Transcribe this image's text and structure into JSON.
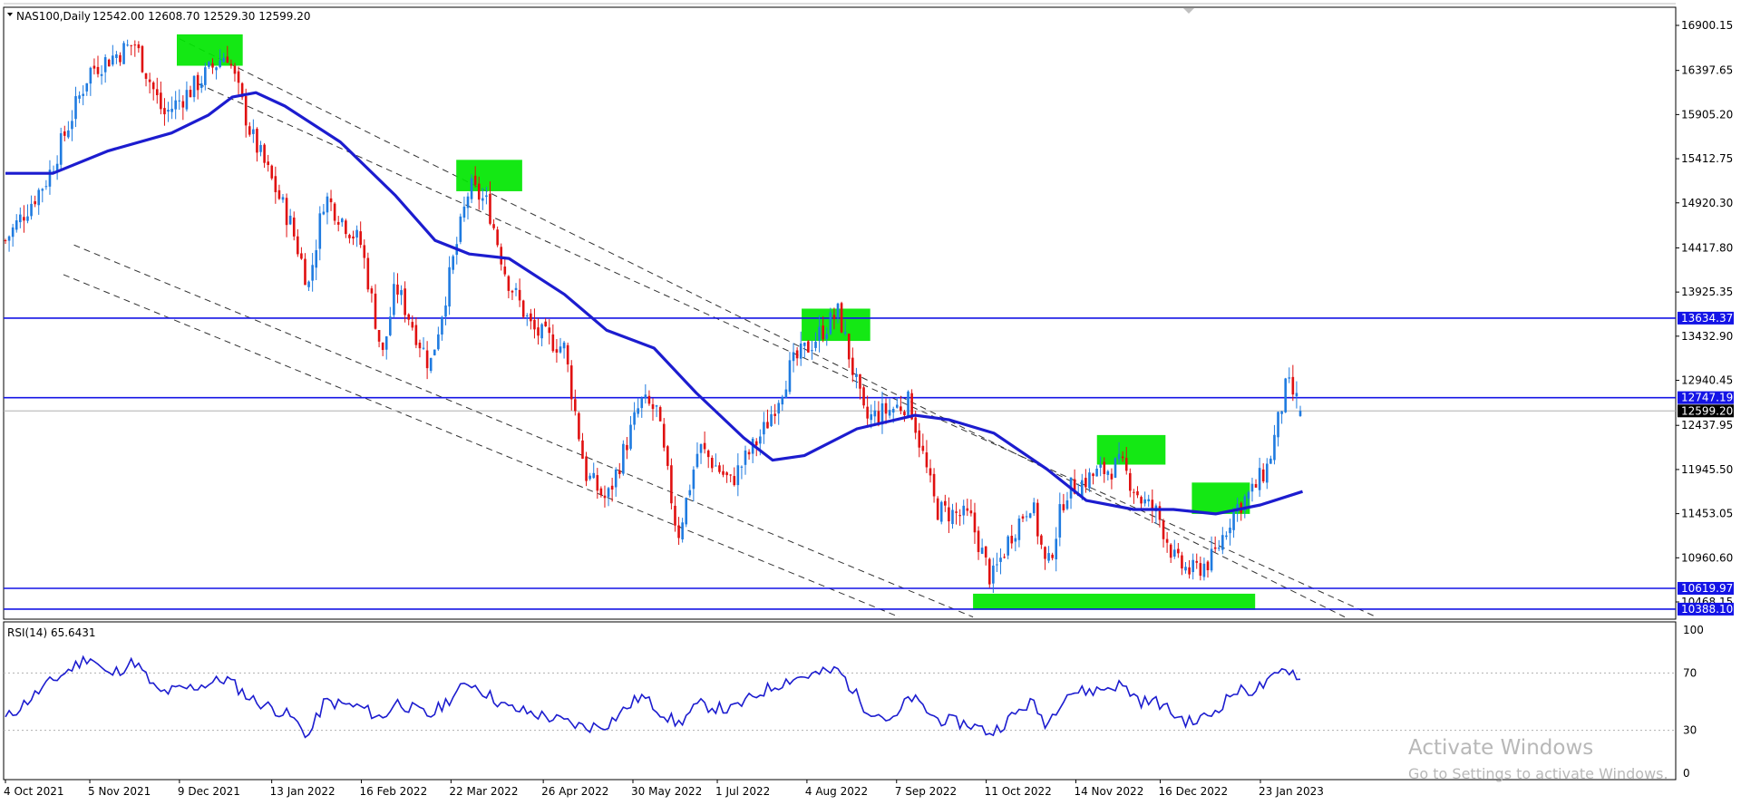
{
  "header": {
    "symbol": "NAS100,Daily",
    "ohlc": "12542.00 12608.70 12529.30 12599.20"
  },
  "colors": {
    "bull_candle": "#1f7be0",
    "bear_candle": "#e01010",
    "moving_average": "#1c1ccf",
    "level_line": "#1414e6",
    "highlight_box": "#00e600",
    "rsi_line": "#1c1ccf",
    "channel_line": "#333333"
  },
  "chart_data": [
    {
      "type": "candlestick",
      "title": "NAS100,Daily",
      "ylim": [
        10260,
        17000
      ],
      "y_tick_labels": [
        "16900.15",
        "16397.65",
        "15905.20",
        "15412.75",
        "14920.30",
        "14417.80",
        "13925.35",
        "13432.90",
        "12940.45",
        "12437.95",
        "11945.50",
        "11453.05",
        "10960.60",
        "10468.15"
      ],
      "x_tick_labels": [
        "4 Oct 2021",
        "5 Nov 2021",
        "9 Dec 2021",
        "13 Jan 2022",
        "16 Feb 2022",
        "22 Mar 2022",
        "26 Apr 2022",
        "30 May 2022",
        "1 Jul 2022",
        "4 Aug 2022",
        "7 Sep 2022",
        "11 Oct 2022",
        "14 Nov 2022",
        "16 Dec 2022",
        "23 Jan 2023"
      ],
      "last_ohlc": {
        "open": 12542.0,
        "high": 12608.7,
        "low": 12529.3,
        "close": 12599.2
      },
      "horizontal_levels": [
        {
          "value": 13634.37,
          "label": "13634.37"
        },
        {
          "value": 12747.19,
          "label": "12747.19"
        },
        {
          "value": 10619.97,
          "label": "10619.97"
        },
        {
          "value": 10388.1,
          "label": "10388.10"
        }
      ],
      "current_price": {
        "value": 12599.2,
        "label": "12599.20"
      },
      "close_path": [
        {
          "date": "2021-10-04",
          "close": 14500
        },
        {
          "date": "2021-10-20",
          "close": 15200
        },
        {
          "date": "2021-11-05",
          "close": 16400
        },
        {
          "date": "2021-11-22",
          "close": 16700
        },
        {
          "date": "2021-12-03",
          "close": 15900
        },
        {
          "date": "2021-12-14",
          "close": 16200
        },
        {
          "date": "2021-12-27",
          "close": 16600
        },
        {
          "date": "2022-01-05",
          "close": 15700
        },
        {
          "date": "2022-01-20",
          "close": 14700
        },
        {
          "date": "2022-01-27",
          "close": 14000
        },
        {
          "date": "2022-02-02",
          "close": 15000
        },
        {
          "date": "2022-02-16",
          "close": 14450
        },
        {
          "date": "2022-02-24",
          "close": 13200
        },
        {
          "date": "2022-03-01",
          "close": 14000
        },
        {
          "date": "2022-03-14",
          "close": 13100
        },
        {
          "date": "2022-03-29",
          "close": 15100
        },
        {
          "date": "2022-04-05",
          "close": 14900
        },
        {
          "date": "2022-04-12",
          "close": 14100
        },
        {
          "date": "2022-04-22",
          "close": 13500
        },
        {
          "date": "2022-05-04",
          "close": 13300
        },
        {
          "date": "2022-05-12",
          "close": 11900
        },
        {
          "date": "2022-05-20",
          "close": 11600
        },
        {
          "date": "2022-06-02",
          "close": 12700
        },
        {
          "date": "2022-06-08",
          "close": 12600
        },
        {
          "date": "2022-06-16",
          "close": 11200
        },
        {
          "date": "2022-06-24",
          "close": 12200
        },
        {
          "date": "2022-07-06",
          "close": 11800
        },
        {
          "date": "2022-07-19",
          "close": 12400
        },
        {
          "date": "2022-07-29",
          "close": 13100
        },
        {
          "date": "2022-08-16",
          "close": 13700
        },
        {
          "date": "2022-08-26",
          "close": 12500
        },
        {
          "date": "2022-09-12",
          "close": 12700
        },
        {
          "date": "2022-09-22",
          "close": 11500
        },
        {
          "date": "2022-10-05",
          "close": 11400
        },
        {
          "date": "2022-10-13",
          "close": 10700
        },
        {
          "date": "2022-10-20",
          "close": 11200
        },
        {
          "date": "2022-10-28",
          "close": 11600
        },
        {
          "date": "2022-11-03",
          "close": 10800
        },
        {
          "date": "2022-11-10",
          "close": 11700
        },
        {
          "date": "2022-11-22",
          "close": 11900
        },
        {
          "date": "2022-12-01",
          "close": 12000
        },
        {
          "date": "2022-12-09",
          "close": 11600
        },
        {
          "date": "2022-12-15",
          "close": 11450
        },
        {
          "date": "2022-12-22",
          "close": 10900
        },
        {
          "date": "2022-12-28",
          "close": 10800
        },
        {
          "date": "2023-01-05",
          "close": 10950
        },
        {
          "date": "2023-01-13",
          "close": 11500
        },
        {
          "date": "2023-01-20",
          "close": 11700
        },
        {
          "date": "2023-01-26",
          "close": 12000
        },
        {
          "date": "2023-02-02",
          "close": 12900
        },
        {
          "date": "2023-02-08",
          "close": 12599.2
        }
      ],
      "moving_average": [
        {
          "date": "2021-10-04",
          "value": 15250
        },
        {
          "date": "2021-10-22",
          "value": 15250
        },
        {
          "date": "2021-11-12",
          "value": 15500
        },
        {
          "date": "2021-12-06",
          "value": 15700
        },
        {
          "date": "2021-12-20",
          "value": 15900
        },
        {
          "date": "2021-12-29",
          "value": 16100
        },
        {
          "date": "2022-01-07",
          "value": 16150
        },
        {
          "date": "2022-01-18",
          "value": 16000
        },
        {
          "date": "2022-02-08",
          "value": 15600
        },
        {
          "date": "2022-03-01",
          "value": 15000
        },
        {
          "date": "2022-03-16",
          "value": 14500
        },
        {
          "date": "2022-03-29",
          "value": 14350
        },
        {
          "date": "2022-04-13",
          "value": 14300
        },
        {
          "date": "2022-05-04",
          "value": 13900
        },
        {
          "date": "2022-05-20",
          "value": 13500
        },
        {
          "date": "2022-06-07",
          "value": 13300
        },
        {
          "date": "2022-06-23",
          "value": 12800
        },
        {
          "date": "2022-07-11",
          "value": 12300
        },
        {
          "date": "2022-07-22",
          "value": 12050
        },
        {
          "date": "2022-08-03",
          "value": 12100
        },
        {
          "date": "2022-08-23",
          "value": 12400
        },
        {
          "date": "2022-09-14",
          "value": 12550
        },
        {
          "date": "2022-09-27",
          "value": 12500
        },
        {
          "date": "2022-10-14",
          "value": 12350
        },
        {
          "date": "2022-11-03",
          "value": 11950
        },
        {
          "date": "2022-11-18",
          "value": 11600
        },
        {
          "date": "2022-12-06",
          "value": 11500
        },
        {
          "date": "2022-12-21",
          "value": 11500
        },
        {
          "date": "2023-01-06",
          "value": 11450
        },
        {
          "date": "2023-01-23",
          "value": 11550
        },
        {
          "date": "2023-02-08",
          "value": 11700
        }
      ],
      "channel_lines": [
        {
          "from": {
            "date": "2021-12-09",
            "price": 16750
          },
          "to": {
            "date": "2023-02-24",
            "price": 10300
          }
        },
        {
          "from": {
            "date": "2021-12-16",
            "price": 16250
          },
          "to": {
            "date": "2023-03-08",
            "price": 10300
          }
        },
        {
          "from": {
            "date": "2021-10-30",
            "price": 14450
          },
          "to": {
            "date": "2022-10-06",
            "price": 10300
          }
        },
        {
          "from": {
            "date": "2021-10-26",
            "price": 14120
          },
          "to": {
            "date": "2022-09-08",
            "price": 10300
          }
        }
      ],
      "highlight_zones": [
        {
          "date_from": "2021-12-08",
          "date_to": "2022-01-02",
          "price_low": 16450,
          "price_high": 16800
        },
        {
          "date_from": "2022-03-24",
          "date_to": "2022-04-18",
          "price_low": 15050,
          "price_high": 15400
        },
        {
          "date_from": "2022-08-02",
          "date_to": "2022-08-28",
          "price_low": 13380,
          "price_high": 13740
        },
        {
          "date_from": "2022-11-22",
          "date_to": "2022-12-18",
          "price_low": 12000,
          "price_high": 12330
        },
        {
          "date_from": "2022-12-28",
          "date_to": "2023-01-19",
          "price_low": 11450,
          "price_high": 11800
        },
        {
          "date_from": "2022-10-06",
          "date_to": "2023-01-21",
          "price_low": 10380,
          "price_high": 10560
        }
      ]
    },
    {
      "type": "line",
      "title": "RSI(14) 65.6431",
      "ylim": [
        0,
        100
      ],
      "y_tick_labels": [
        "100",
        "70",
        "30",
        "0"
      ],
      "reference_levels": [
        70,
        30
      ],
      "current_value": 65.6431,
      "path": [
        {
          "date": "2021-10-04",
          "value": 38
        },
        {
          "date": "2021-10-20",
          "value": 62
        },
        {
          "date": "2021-11-05",
          "value": 82
        },
        {
          "date": "2021-11-12",
          "value": 68
        },
        {
          "date": "2021-11-22",
          "value": 78
        },
        {
          "date": "2021-12-01",
          "value": 56
        },
        {
          "date": "2021-12-14",
          "value": 60
        },
        {
          "date": "2021-12-27",
          "value": 66
        },
        {
          "date": "2022-01-05",
          "value": 52
        },
        {
          "date": "2022-01-20",
          "value": 40
        },
        {
          "date": "2022-01-27",
          "value": 26
        },
        {
          "date": "2022-02-02",
          "value": 50
        },
        {
          "date": "2022-02-16",
          "value": 46
        },
        {
          "date": "2022-02-24",
          "value": 38
        },
        {
          "date": "2022-03-01",
          "value": 50
        },
        {
          "date": "2022-03-14",
          "value": 40
        },
        {
          "date": "2022-03-29",
          "value": 64
        },
        {
          "date": "2022-04-12",
          "value": 46
        },
        {
          "date": "2022-04-26",
          "value": 40
        },
        {
          "date": "2022-05-12",
          "value": 32
        },
        {
          "date": "2022-05-20",
          "value": 34
        },
        {
          "date": "2022-06-02",
          "value": 54
        },
        {
          "date": "2022-06-16",
          "value": 34
        },
        {
          "date": "2022-06-24",
          "value": 48
        },
        {
          "date": "2022-07-06",
          "value": 44
        },
        {
          "date": "2022-07-19",
          "value": 58
        },
        {
          "date": "2022-07-29",
          "value": 66
        },
        {
          "date": "2022-08-16",
          "value": 72
        },
        {
          "date": "2022-08-26",
          "value": 46
        },
        {
          "date": "2022-09-06",
          "value": 36
        },
        {
          "date": "2022-09-12",
          "value": 54
        },
        {
          "date": "2022-09-22",
          "value": 38
        },
        {
          "date": "2022-10-05",
          "value": 34
        },
        {
          "date": "2022-10-13",
          "value": 28
        },
        {
          "date": "2022-10-28",
          "value": 50
        },
        {
          "date": "2022-11-03",
          "value": 34
        },
        {
          "date": "2022-11-10",
          "value": 56
        },
        {
          "date": "2022-11-22",
          "value": 58
        },
        {
          "date": "2022-12-01",
          "value": 62
        },
        {
          "date": "2022-12-09",
          "value": 50
        },
        {
          "date": "2022-12-15",
          "value": 50
        },
        {
          "date": "2022-12-22",
          "value": 40
        },
        {
          "date": "2022-12-28",
          "value": 35
        },
        {
          "date": "2023-01-05",
          "value": 42
        },
        {
          "date": "2023-01-13",
          "value": 57
        },
        {
          "date": "2023-01-20",
          "value": 58
        },
        {
          "date": "2023-01-26",
          "value": 63
        },
        {
          "date": "2023-02-02",
          "value": 74
        },
        {
          "date": "2023-02-08",
          "value": 65.6431
        }
      ]
    }
  ],
  "watermark": {
    "title": "Activate Windows",
    "subtitle": "Go to Settings to activate Windows."
  }
}
